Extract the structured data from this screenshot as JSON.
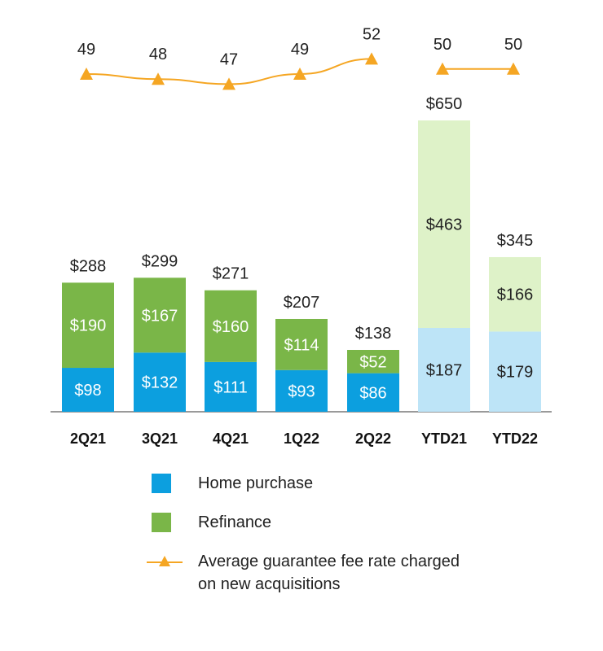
{
  "chart_data": {
    "type": "bar",
    "stacked": true,
    "categories": [
      "2Q21",
      "3Q21",
      "4Q21",
      "1Q22",
      "2Q22",
      "YTD21",
      "YTD22"
    ],
    "series": [
      {
        "name": "Home purchase",
        "values": [
          98,
          132,
          111,
          93,
          86,
          187,
          179
        ],
        "labels": [
          "$98",
          "$132",
          "$111",
          "$93",
          "$86",
          "$187",
          "$179"
        ],
        "color": "#0c9fdf",
        "ytd_color": "#bde4f7"
      },
      {
        "name": "Refinance",
        "values": [
          190,
          167,
          160,
          114,
          52,
          463,
          166
        ],
        "labels": [
          "$190",
          "$167",
          "$160",
          "$114",
          "$52",
          "$463",
          "$166"
        ],
        "color": "#7ab648",
        "ytd_color": "#def2c8"
      }
    ],
    "totals": [
      288,
      299,
      271,
      207,
      138,
      650,
      345
    ],
    "total_labels": [
      "$288",
      "$299",
      "$271",
      "$207",
      "$138",
      "$650",
      "$345"
    ],
    "ylim": [
      0,
      650
    ],
    "line_series": {
      "name": "Average guarantee fee rate charged on new acquisitions",
      "values": [
        49,
        48,
        47,
        49,
        52,
        50,
        50
      ],
      "labels": [
        "49",
        "48",
        "47",
        "49",
        "52",
        "50",
        "50"
      ],
      "segments": [
        [
          0,
          4
        ],
        [
          5,
          6
        ]
      ],
      "color": "#f5a623"
    },
    "legend_position": "bottom",
    "grid": false
  },
  "legend": {
    "home_purchase": "Home purchase",
    "refinance": "Refinance",
    "fee_rate_line1": "Average guarantee fee rate charged",
    "fee_rate_line2": "on new acquisitions"
  }
}
